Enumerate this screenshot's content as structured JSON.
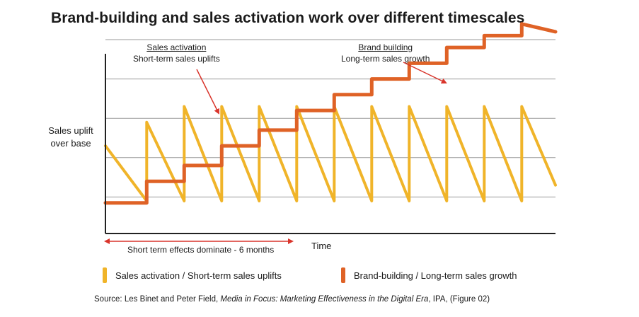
{
  "title": "Brand-building and sales activation work over different timescales",
  "y_axis_label": "Sales uplift\nover base",
  "x_axis_label": "Time",
  "annotations": {
    "sales_activation": {
      "heading": "Sales activation",
      "text": "Short-term sales uplifts"
    },
    "brand_building": {
      "heading": "Brand building",
      "text": "Long-term sales growth"
    }
  },
  "period_note": "Short term effects dominate - 6 months",
  "legend": [
    {
      "label": "Sales activation / Short-term sales uplifts",
      "color": "#F0B429"
    },
    {
      "label": "Brand-building / Long-term sales growth",
      "color": "#DF6226"
    }
  ],
  "source": {
    "prefix": "Source: Les Binet and Peter Field, ",
    "italic": "Media in Focus: Marketing Effectiveness in the Digital Era",
    "suffix": ", IPA, (Figure 02)"
  },
  "colors": {
    "activation": "#F0B429",
    "brand": "#DF6226",
    "arrow": "#D9342B",
    "grid": "#9a9a9a",
    "axis": "#222222"
  },
  "chart_data": {
    "type": "line",
    "x_range": [
      0,
      12
    ],
    "y_range": [
      0,
      5
    ],
    "gridlines_y": [
      1,
      2,
      3,
      4,
      5
    ],
    "series": [
      {
        "name": "Sales activation / Short-term sales uplifts",
        "role": "activation",
        "x": [
          0,
          1.1,
          1.1,
          2.1,
          2.1,
          3.1,
          3.1,
          4.1,
          4.1,
          5.1,
          5.1,
          6.1,
          6.1,
          7.1,
          7.1,
          8.1,
          8.1,
          9.1,
          9.1,
          10.1,
          10.1,
          11.1,
          11.1,
          12
        ],
        "y": [
          2.3,
          0.9,
          2.9,
          0.9,
          3.3,
          0.9,
          3.3,
          0.9,
          3.3,
          0.9,
          3.3,
          0.9,
          3.3,
          0.9,
          3.3,
          0.9,
          3.3,
          0.9,
          3.3,
          0.9,
          3.3,
          0.9,
          3.3,
          1.3
        ]
      },
      {
        "name": "Brand-building / Long-term sales growth",
        "role": "brand",
        "x": [
          0,
          1.1,
          1.1,
          2.1,
          2.1,
          3.1,
          3.1,
          4.1,
          4.1,
          5.1,
          5.1,
          6.1,
          6.1,
          7.1,
          7.1,
          8.1,
          8.1,
          9.1,
          9.1,
          10.1,
          10.1,
          11.1,
          11.1,
          12
        ],
        "y": [
          0.85,
          0.85,
          1.4,
          1.4,
          1.8,
          1.8,
          2.3,
          2.3,
          2.7,
          2.7,
          3.2,
          3.2,
          3.6,
          3.6,
          4.0,
          4.0,
          4.4,
          4.4,
          4.8,
          4.8,
          5.1,
          5.1,
          5.4,
          5.2
        ]
      }
    ]
  }
}
